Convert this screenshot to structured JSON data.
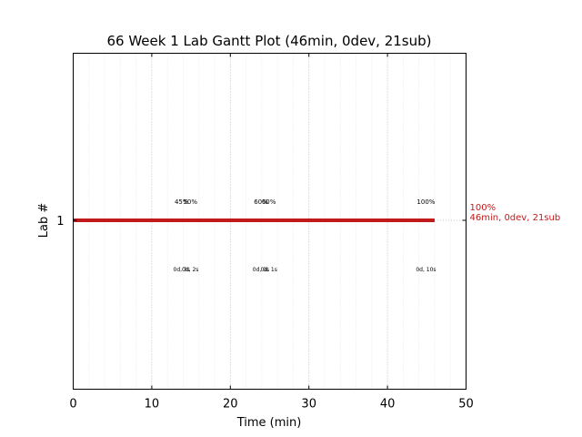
{
  "chart_data": {
    "type": "gantt",
    "title": "66 Week 1 Lab Gantt Plot (46min, 0dev, 21sub)",
    "xlabel": "Time (min)",
    "ylabel": "Lab #",
    "xlim": [
      0,
      50
    ],
    "x_ticks": [
      0,
      10,
      20,
      30,
      40,
      50
    ],
    "x_tick_labels": [
      "0",
      "10",
      "20",
      "30",
      "40",
      "50"
    ],
    "y_ticks": [
      1
    ],
    "y_tick_labels": [
      "1"
    ],
    "grid_major_x": true,
    "grid_minor_x": true,
    "bar_color": "#c21a1a",
    "bars": [
      {
        "lab": 1,
        "start": 0,
        "end": 46,
        "end_label_line1": "100%",
        "end_label_line2": "46min, 0dev, 21sub"
      }
    ],
    "annotations_above": [
      {
        "x": 13.8,
        "text": "45%"
      },
      {
        "x": 14.9,
        "text": "50%"
      },
      {
        "x": 23.9,
        "text": "60%"
      },
      {
        "x": 24.9,
        "text": "60%"
      },
      {
        "x": 44.9,
        "text": "100%"
      }
    ],
    "annotations_below": [
      {
        "x": 13.8,
        "text": "0d, 3s"
      },
      {
        "x": 14.9,
        "text": "0d, 2s"
      },
      {
        "x": 23.9,
        "text": "0d, 3s"
      },
      {
        "x": 24.9,
        "text": "0d, 1s"
      },
      {
        "x": 44.9,
        "text": "0d, 10s"
      }
    ]
  }
}
